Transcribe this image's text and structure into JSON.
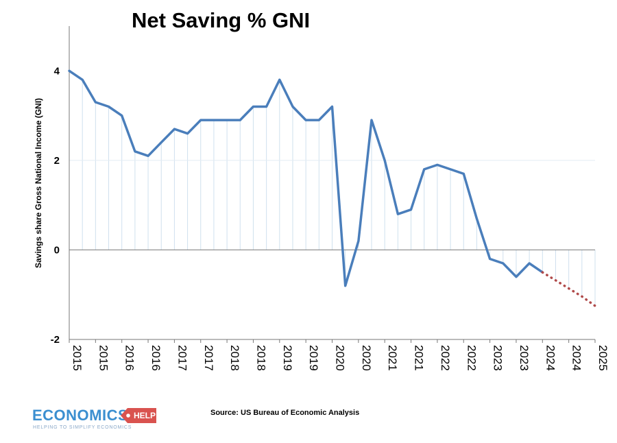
{
  "chart_data": {
    "type": "line",
    "title": "Net Saving % GNI",
    "ylabel": "Savings share Gross National Income (GNI)",
    "xlabel": "",
    "ylim": [
      -2,
      5
    ],
    "yticks": [
      -2,
      0,
      2,
      4
    ],
    "x": [
      "2015",
      "2015",
      "2015",
      "2015",
      "2016",
      "2016",
      "2016",
      "2016",
      "2017",
      "2017",
      "2017",
      "2017",
      "2018",
      "2018",
      "2018",
      "2018",
      "2019",
      "2019",
      "2019",
      "2019",
      "2020",
      "2020",
      "2020",
      "2020",
      "2021",
      "2021",
      "2021",
      "2021",
      "2022",
      "2022",
      "2022",
      "2022",
      "2023",
      "2023",
      "2023",
      "2023",
      "2024",
      "2024",
      "2024",
      "2024",
      "2025"
    ],
    "xtick_labels": [
      "2015",
      "2015",
      "2016",
      "2016",
      "2017",
      "2017",
      "2018",
      "2018",
      "2019",
      "2019",
      "2020",
      "2020",
      "2021",
      "2021",
      "2022",
      "2022",
      "2023",
      "2023",
      "2024",
      "2024",
      "2025"
    ],
    "series": [
      {
        "style": "solid",
        "color": "#4a7ebb",
        "values": [
          4.0,
          3.8,
          3.3,
          3.2,
          3.0,
          2.2,
          2.1,
          2.4,
          2.7,
          2.6,
          2.9,
          2.9,
          2.9,
          2.9,
          3.2,
          3.2,
          3.8,
          3.2,
          2.9,
          2.9,
          3.2,
          -0.8,
          0.2,
          2.9,
          2.0,
          0.8,
          0.9,
          1.8,
          1.9,
          1.8,
          1.7,
          0.7,
          -0.2,
          -0.3,
          -0.6,
          -0.3,
          -0.5,
          null,
          null,
          null,
          null
        ]
      },
      {
        "style": "dotted",
        "color": "#b04a4a",
        "values": [
          null,
          null,
          null,
          null,
          null,
          null,
          null,
          null,
          null,
          null,
          null,
          null,
          null,
          null,
          null,
          null,
          null,
          null,
          null,
          null,
          null,
          null,
          null,
          null,
          null,
          null,
          null,
          null,
          null,
          null,
          null,
          null,
          null,
          null,
          null,
          null,
          -0.5,
          -0.68,
          -0.86,
          -1.04,
          -1.25
        ]
      }
    ],
    "grid": "vertical drop lines",
    "legend": "none"
  },
  "source": "Source: US Bureau of Economic Analysis",
  "logo": {
    "word": "ECONOMICS",
    "tag": "HELP",
    "slogan": "HELPING TO SIMPLIFY ECONOMICS",
    "color": "#3b8fd0",
    "tag_color": "#d9534f"
  }
}
